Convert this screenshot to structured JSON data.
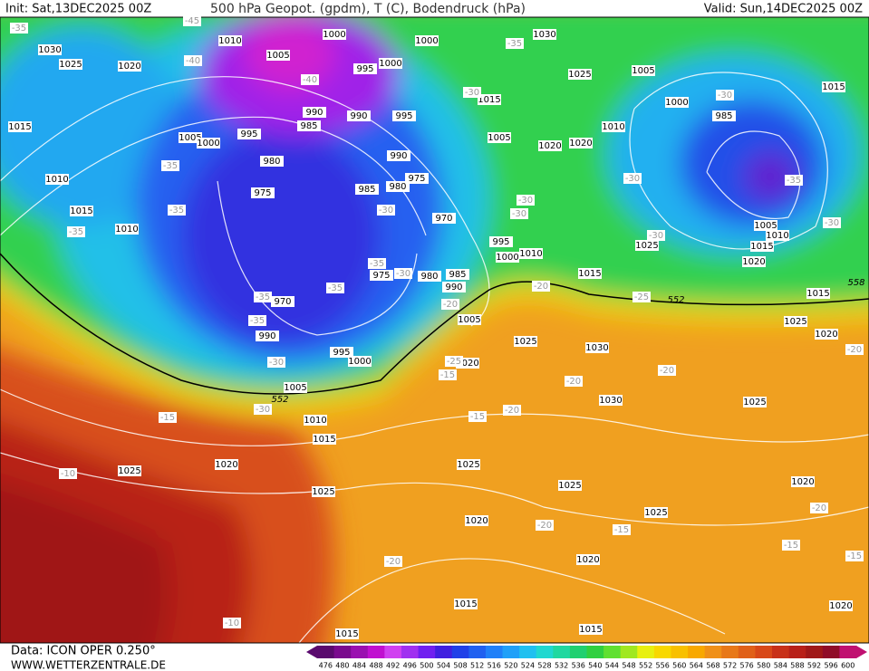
{
  "header": {
    "init": "Init: Sat,13DEC2025 00Z",
    "title": "500 hPa Geopot. (gpdm), T (C), Bodendruck (hPa)",
    "valid": "Valid: Sun,14DEC2025 00Z"
  },
  "map": {
    "isobar_labels": [
      "1030",
      "1025",
      "1020",
      "1010",
      "1005",
      "1000",
      "995",
      "1000",
      "1000",
      "1030",
      "1025",
      "1005",
      "1000",
      "985",
      "1015",
      "1015",
      "1005",
      "1000",
      "995",
      "990",
      "985",
      "990",
      "995",
      "1015",
      "1005",
      "1020",
      "1020",
      "1010",
      "980",
      "990",
      "975",
      "975",
      "985",
      "980",
      "1010",
      "1015",
      "1010",
      "970",
      "995",
      "1000",
      "1010",
      "1005",
      "1010",
      "1015",
      "1025",
      "1020",
      "1015",
      "975",
      "980",
      "985",
      "990",
      "970",
      "990",
      "995",
      "1000",
      "1005",
      "1005",
      "1010",
      "1015",
      "1020",
      "1025",
      "1030",
      "1030",
      "1025",
      "1025",
      "1020",
      "1015",
      "1025",
      "1020",
      "1025",
      "1025",
      "1025",
      "1025",
      "1020",
      "1020",
      "1020",
      "1015",
      "1015",
      "1015",
      "1020"
    ],
    "temperature_labels": [
      "-35",
      "-40",
      "-40",
      "-45",
      "-35",
      "-30",
      "-30",
      "-35",
      "-35",
      "-35",
      "-30",
      "-35",
      "-30",
      "-30",
      "-30",
      "-30",
      "-30",
      "-35",
      "-30",
      "-35",
      "-35",
      "-35",
      "-20",
      "-20",
      "-25",
      "-30",
      "-30",
      "-25",
      "-15",
      "-20",
      "-20",
      "-15",
      "-15",
      "-20",
      "-10",
      "-20",
      "-15",
      "-20",
      "-20",
      "-15",
      "-15",
      "-10",
      "-20"
    ],
    "contour_labels": [
      "552",
      "552",
      "558"
    ]
  },
  "legend": {
    "values": [
      476,
      480,
      484,
      488,
      492,
      496,
      500,
      504,
      508,
      512,
      516,
      520,
      524,
      528,
      532,
      536,
      540,
      544,
      548,
      552,
      556,
      560,
      564,
      568,
      572,
      576,
      580,
      584,
      588,
      592,
      596,
      600
    ],
    "colors": [
      "#5a0a6e",
      "#7a0a8e",
      "#9a10b0",
      "#c010d0",
      "#d040f0",
      "#a030f0",
      "#7020f0",
      "#4020e0",
      "#2040e8",
      "#2060f0",
      "#2080f8",
      "#20a0f8",
      "#20c0f0",
      "#20d8d0",
      "#20d8a0",
      "#20d070",
      "#30d040",
      "#60e030",
      "#a0e820",
      "#e8f010",
      "#f8d800",
      "#f8c000",
      "#f8a800",
      "#f09018",
      "#e87818",
      "#e06018",
      "#d84818",
      "#c83018",
      "#b82018",
      "#a01818",
      "#900c28",
      "#c01070"
    ]
  },
  "footer": {
    "data": "Data: ICON OPER 0.250°",
    "site": "WWW.WETTERZENTRALE.DE"
  }
}
